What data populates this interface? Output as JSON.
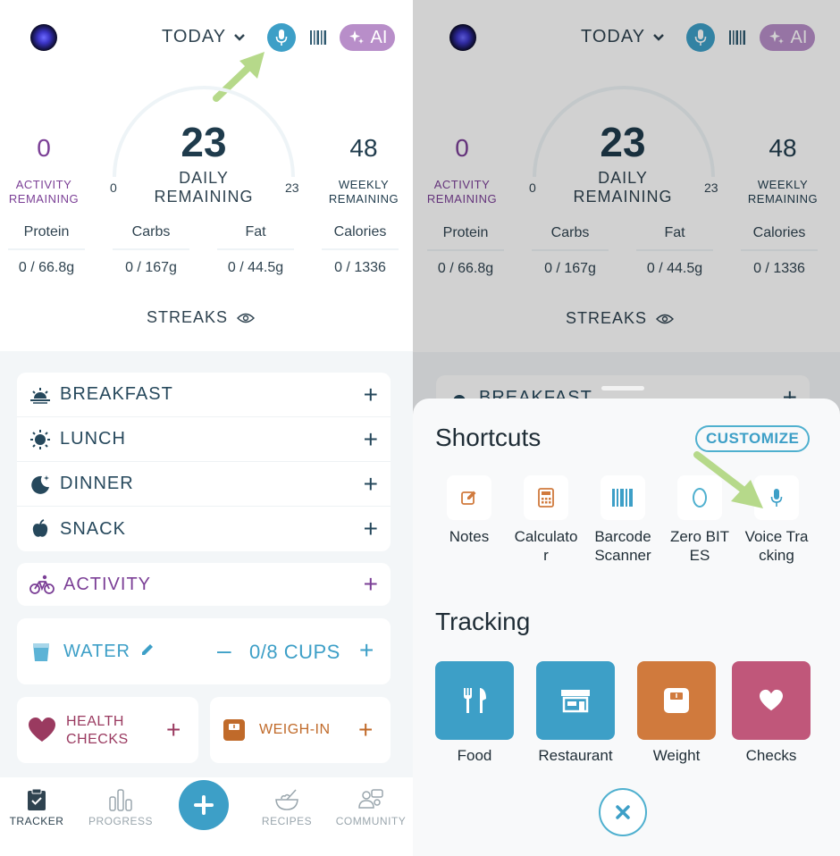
{
  "header": {
    "date_label": "TODAY",
    "ai_label": "AI"
  },
  "summary": {
    "activity_value": "0",
    "activity_label_1": "ACTIVITY",
    "activity_label_2": "REMAINING",
    "daily_value": "23",
    "daily_label_1": "DAILY",
    "daily_label_2": "REMAINING",
    "gauge_min": "0",
    "gauge_max": "23",
    "weekly_value": "48",
    "weekly_label_1": "WEEKLY",
    "weekly_label_2": "REMAINING"
  },
  "macros": [
    {
      "name": "Protein",
      "value": "0 / 66.8g"
    },
    {
      "name": "Carbs",
      "value": "0 / 167g"
    },
    {
      "name": "Fat",
      "value": "0 / 44.5g"
    },
    {
      "name": "Calories",
      "value": "0 / 1336"
    }
  ],
  "streaks_label": "STREAKS",
  "meals": [
    {
      "label": "BREAKFAST",
      "icon": "sunrise-icon"
    },
    {
      "label": "LUNCH",
      "icon": "sun-icon"
    },
    {
      "label": "DINNER",
      "icon": "moon-icon"
    },
    {
      "label": "SNACK",
      "icon": "apple-icon"
    }
  ],
  "activity_label": "ACTIVITY",
  "water": {
    "label": "WATER",
    "count": "0/8 CUPS"
  },
  "health_checks": {
    "label_1": "HEALTH",
    "label_2": "CHECKS"
  },
  "weigh_in_label": "WEIGH-IN",
  "nav": {
    "tracker": "TRACKER",
    "progress": "PROGRESS",
    "recipes": "RECIPES",
    "community": "COMMUNITY"
  },
  "sheet": {
    "shortcuts_title": "Shortcuts",
    "customize_label": "CUSTOMIZE",
    "shortcuts": [
      {
        "label": "Notes",
        "icon": "edit-icon"
      },
      {
        "label": "Calculator",
        "icon": "calculator-icon"
      },
      {
        "label": "Barcode Scanner",
        "icon": "barcode-icon"
      },
      {
        "label": "Zero BITES",
        "icon": "zero-icon"
      },
      {
        "label": "Voice Tracking",
        "icon": "mic-icon"
      }
    ],
    "tracking_title": "Tracking",
    "tracking": [
      {
        "label": "Food",
        "color": "#3d9fc7"
      },
      {
        "label": "Restaurant",
        "color": "#3d9fc7"
      },
      {
        "label": "Weight",
        "color": "#d07a3d"
      },
      {
        "label": "Checks",
        "color": "#c0577a"
      }
    ],
    "peek_breakfast": "BREAKFAST"
  },
  "colors": {
    "accent_blue": "#3d9fc7",
    "purple": "#7b3f96",
    "health": "#9a3a60",
    "weigh": "#c06a2a",
    "arrow": "#b6d98a"
  }
}
